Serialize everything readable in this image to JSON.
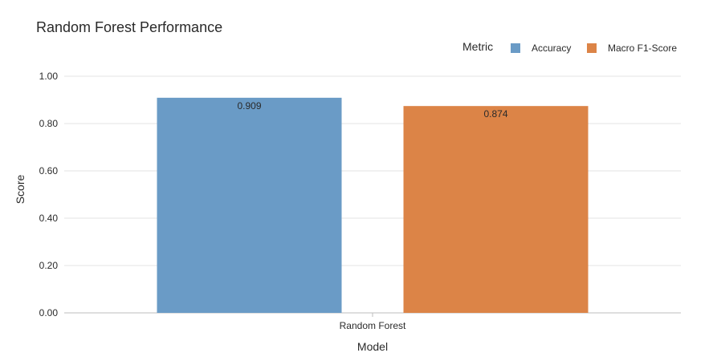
{
  "chart_data": {
    "type": "bar",
    "title": "Random Forest Performance",
    "xlabel": "Model",
    "ylabel": "Score",
    "categories": [
      "Random Forest"
    ],
    "series": [
      {
        "name": "Accuracy",
        "values": [
          0.909
        ],
        "color": "#6a9bc6"
      },
      {
        "name": "Macro F1-Score",
        "values": [
          0.874
        ],
        "color": "#dc8447"
      }
    ],
    "ylim": [
      0,
      1
    ],
    "yticks": [
      0,
      0.2,
      0.4,
      0.6,
      0.8,
      1.0
    ],
    "ytick_labels": [
      "0.00",
      "0.20",
      "0.40",
      "0.60",
      "0.80",
      "1.00"
    ],
    "data_labels": [
      "0.909",
      "0.874"
    ],
    "legend": {
      "title": "Metric",
      "placement": "top-right"
    },
    "grid": true
  }
}
